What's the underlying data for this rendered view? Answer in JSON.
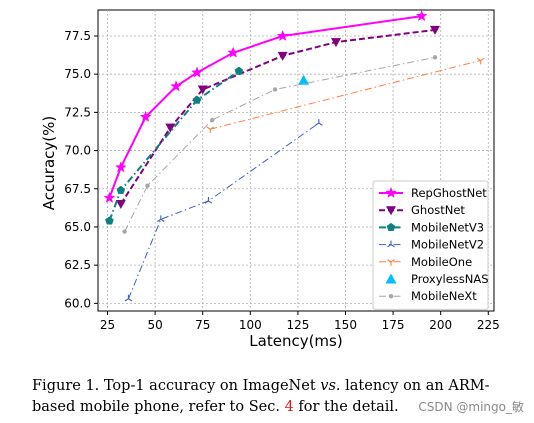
{
  "chart_data": {
    "type": "line",
    "xlabel": "Latency(ms)",
    "ylabel": "Accuracy(%)",
    "xlim": [
      20,
      228
    ],
    "ylim": [
      59.5,
      79.2
    ],
    "xticks": [
      "25",
      "50",
      "75",
      "100",
      "125",
      "150",
      "175",
      "200",
      "225"
    ],
    "yticks": [
      "60.0",
      "62.5",
      "65.0",
      "67.5",
      "70.0",
      "72.5",
      "75.0",
      "77.5"
    ],
    "grid": true,
    "legend_position": "center-right",
    "series": [
      {
        "name": "RepGhostNet",
        "color": "#ff00ff",
        "linestyle": "solid",
        "marker": "star",
        "x": [
          26,
          32,
          45,
          61,
          72,
          91,
          117,
          190
        ],
        "y": [
          66.9,
          68.9,
          72.2,
          74.2,
          75.1,
          76.4,
          77.5,
          78.8
        ]
      },
      {
        "name": "GhostNet",
        "color": "#800080",
        "linestyle": "dashed",
        "marker": "triangle-down",
        "x": [
          32,
          58,
          75,
          117,
          145,
          197
        ],
        "y": [
          66.5,
          71.5,
          74.0,
          76.2,
          77.1,
          77.9
        ]
      },
      {
        "name": "MobileNetV3",
        "color": "#0f8080",
        "linestyle": "dashdot",
        "marker": "pentagon",
        "x": [
          26,
          32,
          72,
          94
        ],
        "y": [
          65.4,
          67.4,
          73.3,
          75.2
        ]
      },
      {
        "name": "MobileNetV2",
        "color": "#4060c0",
        "linestyle": "dashdot",
        "marker": "tri",
        "x": [
          36,
          53,
          78,
          136
        ],
        "y": [
          60.3,
          65.5,
          66.7,
          71.8
        ]
      },
      {
        "name": "MobileOne",
        "color": "#ff8040",
        "linestyle": "dashdot",
        "marker": "tri-down",
        "x": [
          79,
          221
        ],
        "y": [
          71.4,
          75.9
        ]
      },
      {
        "name": "ProxylessNAS",
        "color": "#00bfff",
        "linestyle": "none",
        "marker": "triangle-up",
        "x": [
          128
        ],
        "y": [
          74.6
        ]
      },
      {
        "name": "MobileNeXt",
        "color": "#a6a6a6",
        "linestyle": "dashdot",
        "marker": "dot",
        "x": [
          34,
          46,
          80,
          113,
          197
        ],
        "y": [
          64.7,
          67.7,
          72.0,
          74.0,
          76.1
        ]
      }
    ]
  },
  "caption": {
    "text_a": "Figure 1. Top-1 accuracy on ImageNet ",
    "text_vs": "vs.",
    "text_b": " latency on an ARM-based mobile phone, refer to Sec. ",
    "ref": "4",
    "text_c": " for the detail."
  },
  "watermark": "CSDN @mingo_敏"
}
